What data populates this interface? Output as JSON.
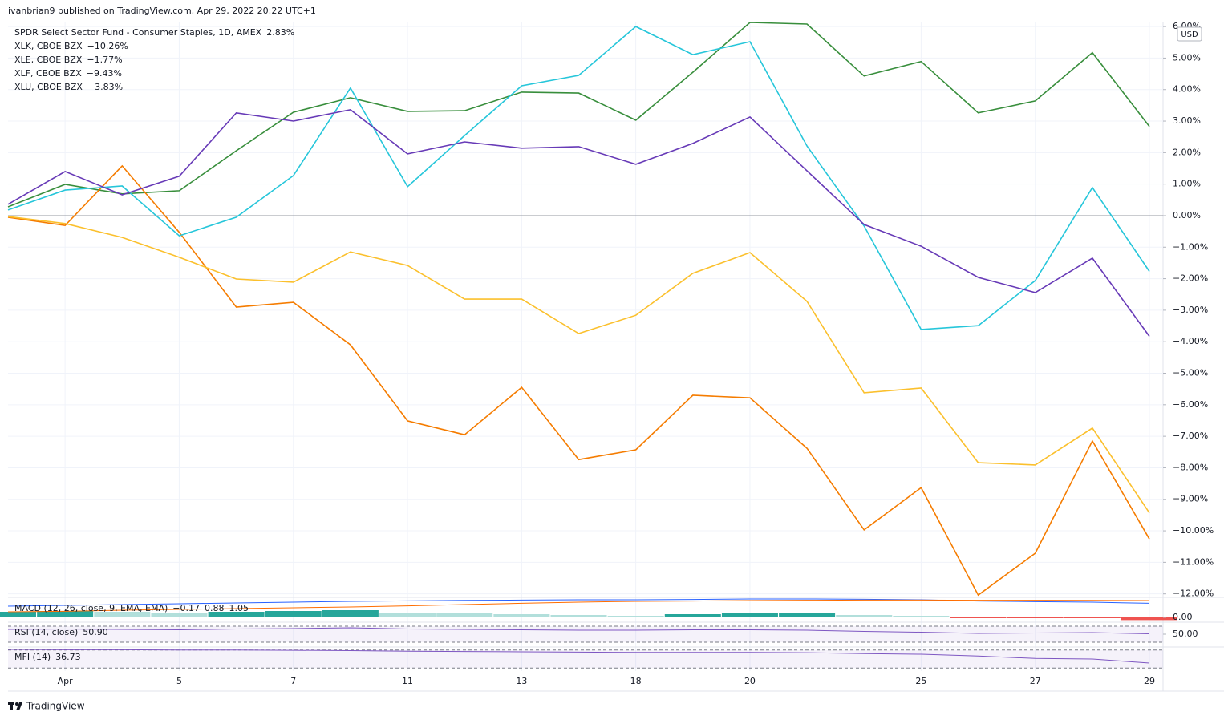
{
  "header": {
    "published": "ivanbrian9 published on TradingView.com, Apr 29, 2022 20:22 UTC+1"
  },
  "footer": {
    "brand": "TradingView"
  },
  "chart_data": [
    {
      "type": "line",
      "currency": "USD",
      "grid": true,
      "categories": [
        null,
        "Apr",
        null,
        "5",
        null,
        "7",
        null,
        "11",
        null,
        "13",
        null,
        "18",
        null,
        "20",
        null,
        null,
        "25",
        null,
        "27",
        null,
        "29"
      ],
      "ylim": [
        -12.11,
        6.13
      ],
      "yticks": [
        {
          "value": 6,
          "label": "6.00%"
        },
        {
          "value": 5,
          "label": "5.00%"
        },
        {
          "value": 4,
          "label": "4.00%"
        },
        {
          "value": 3,
          "label": "3.00%"
        },
        {
          "value": 2,
          "label": "2.00%"
        },
        {
          "value": 1,
          "label": "1.00%"
        },
        {
          "value": 0,
          "label": "0.00%"
        },
        {
          "value": -1,
          "label": "−1.00%"
        },
        {
          "value": -2,
          "label": "−2.00%"
        },
        {
          "value": -3,
          "label": "−3.00%"
        },
        {
          "value": -4,
          "label": "−4.00%"
        },
        {
          "value": -5,
          "label": "−5.00%"
        },
        {
          "value": -6,
          "label": "−6.00%"
        },
        {
          "value": -7,
          "label": "−7.00%"
        },
        {
          "value": -8,
          "label": "−8.00%"
        },
        {
          "value": -9,
          "label": "−9.00%"
        },
        {
          "value": -10,
          "label": "−10.00%"
        },
        {
          "value": -11,
          "label": "−11.00%"
        },
        {
          "value": -12,
          "label": "−12.00%"
        }
      ],
      "series": [
        {
          "name": "SPDR Select Sector Fund - Consumer Staples, 1D, AMEX",
          "color": "#388e3c",
          "legend_value": "2.83%",
          "values": [
            0.28,
            0.99,
            0.69,
            0.79,
            2.06,
            3.28,
            3.74,
            3.31,
            3.33,
            3.92,
            3.89,
            3.03,
            4.55,
            6.13,
            6.08,
            4.43,
            4.89,
            3.26,
            3.64,
            5.17,
            2.83
          ]
        },
        {
          "name": "XLK, CBOE BZX",
          "color": "#f57c00",
          "legend_value": "−10.26%",
          "values": [
            -0.05,
            -0.31,
            1.58,
            -0.53,
            -2.9,
            -2.75,
            -4.1,
            -6.51,
            -6.95,
            -5.45,
            -7.74,
            -7.43,
            -5.7,
            -5.78,
            -7.38,
            -9.97,
            -8.63,
            -12.04,
            -10.71,
            -7.15,
            -10.26
          ]
        },
        {
          "name": "XLE, CBOE BZX",
          "color": "#26c6da",
          "legend_value": "−1.77%",
          "values": [
            0.18,
            0.81,
            0.94,
            -0.64,
            -0.05,
            1.27,
            4.05,
            0.92,
            2.54,
            4.12,
            4.45,
            6.0,
            5.11,
            5.52,
            2.21,
            -0.33,
            -3.61,
            -3.49,
            -2.06,
            0.89,
            -1.77
          ]
        },
        {
          "name": "XLF, CBOE BZX",
          "color": "#fbc02d",
          "legend_value": "−9.43%",
          "values": [
            -0.03,
            -0.25,
            -0.69,
            -1.32,
            -2.01,
            -2.11,
            -1.15,
            -1.58,
            -2.65,
            -2.65,
            -3.74,
            -3.16,
            -1.83,
            -1.17,
            -2.72,
            -5.62,
            -5.47,
            -7.84,
            -7.91,
            -6.74,
            -9.43
          ]
        },
        {
          "name": "XLU, CBOE BZX",
          "color": "#673ab7",
          "legend_value": "−3.83%",
          "values": [
            0.36,
            1.4,
            0.66,
            1.25,
            3.26,
            3.0,
            3.36,
            1.96,
            2.34,
            2.14,
            2.19,
            1.63,
            2.29,
            3.13,
            1.42,
            -0.28,
            -0.97,
            -1.96,
            -2.44,
            -1.35,
            -3.83
          ]
        }
      ]
    },
    {
      "type": "macd",
      "title": "MACD (12, 26, close, 9, EMA, EMA)",
      "ylim": [
        -0.25,
        1.25
      ],
      "yticks": [
        {
          "value": 0,
          "label": "0.00"
        }
      ],
      "histogram": {
        "color": "#ef5350",
        "legend_value": "−0.17",
        "values": [
          0.35,
          0.4,
          0.35,
          0.3,
          0.35,
          0.4,
          0.45,
          0.3,
          0.25,
          0.2,
          0.15,
          0.1,
          0.2,
          0.25,
          0.3,
          0.15,
          0.1,
          -0.02,
          -0.05,
          -0.05,
          -0.17
        ]
      },
      "macd": {
        "color": "#2962ff",
        "legend_value": "0.88",
        "values": [
          0.7,
          0.75,
          0.8,
          0.85,
          0.9,
          0.95,
          1.0,
          1.03,
          1.06,
          1.08,
          1.1,
          1.1,
          1.12,
          1.15,
          1.15,
          1.13,
          1.1,
          1.02,
          0.98,
          0.95,
          0.88
        ]
      },
      "signal": {
        "color": "#ff6d00",
        "legend_value": "1.05",
        "values": [
          0.35,
          0.38,
          0.45,
          0.5,
          0.55,
          0.6,
          0.65,
          0.72,
          0.8,
          0.88,
          0.95,
          1.0,
          1.02,
          1.05,
          1.07,
          1.08,
          1.08,
          1.07,
          1.07,
          1.06,
          1.05
        ]
      }
    },
    {
      "type": "rsi",
      "title": "RSI (14, close)",
      "color": "#7e57c2",
      "legend_value": "50.90",
      "ylim": [
        20,
        80
      ],
      "bands": [
        70,
        30
      ],
      "yticks": [
        {
          "value": 50,
          "label": "50.00"
        }
      ],
      "values": [
        62,
        63,
        62,
        61,
        63,
        64,
        66,
        63,
        62,
        61,
        60,
        60,
        61,
        61,
        60,
        57,
        55,
        52,
        53,
        54,
        50.9
      ]
    },
    {
      "type": "mfi",
      "title": "MFI (14)",
      "color": "#7e57c2",
      "legend_value": "36.73",
      "ylim": [
        10,
        90
      ],
      "bands": [
        80,
        20
      ],
      "values": [
        82,
        81,
        81,
        80,
        80,
        79,
        78,
        76,
        75,
        74,
        73,
        72,
        72,
        72,
        71,
        68,
        66,
        60,
        52,
        50,
        36.73
      ]
    }
  ]
}
